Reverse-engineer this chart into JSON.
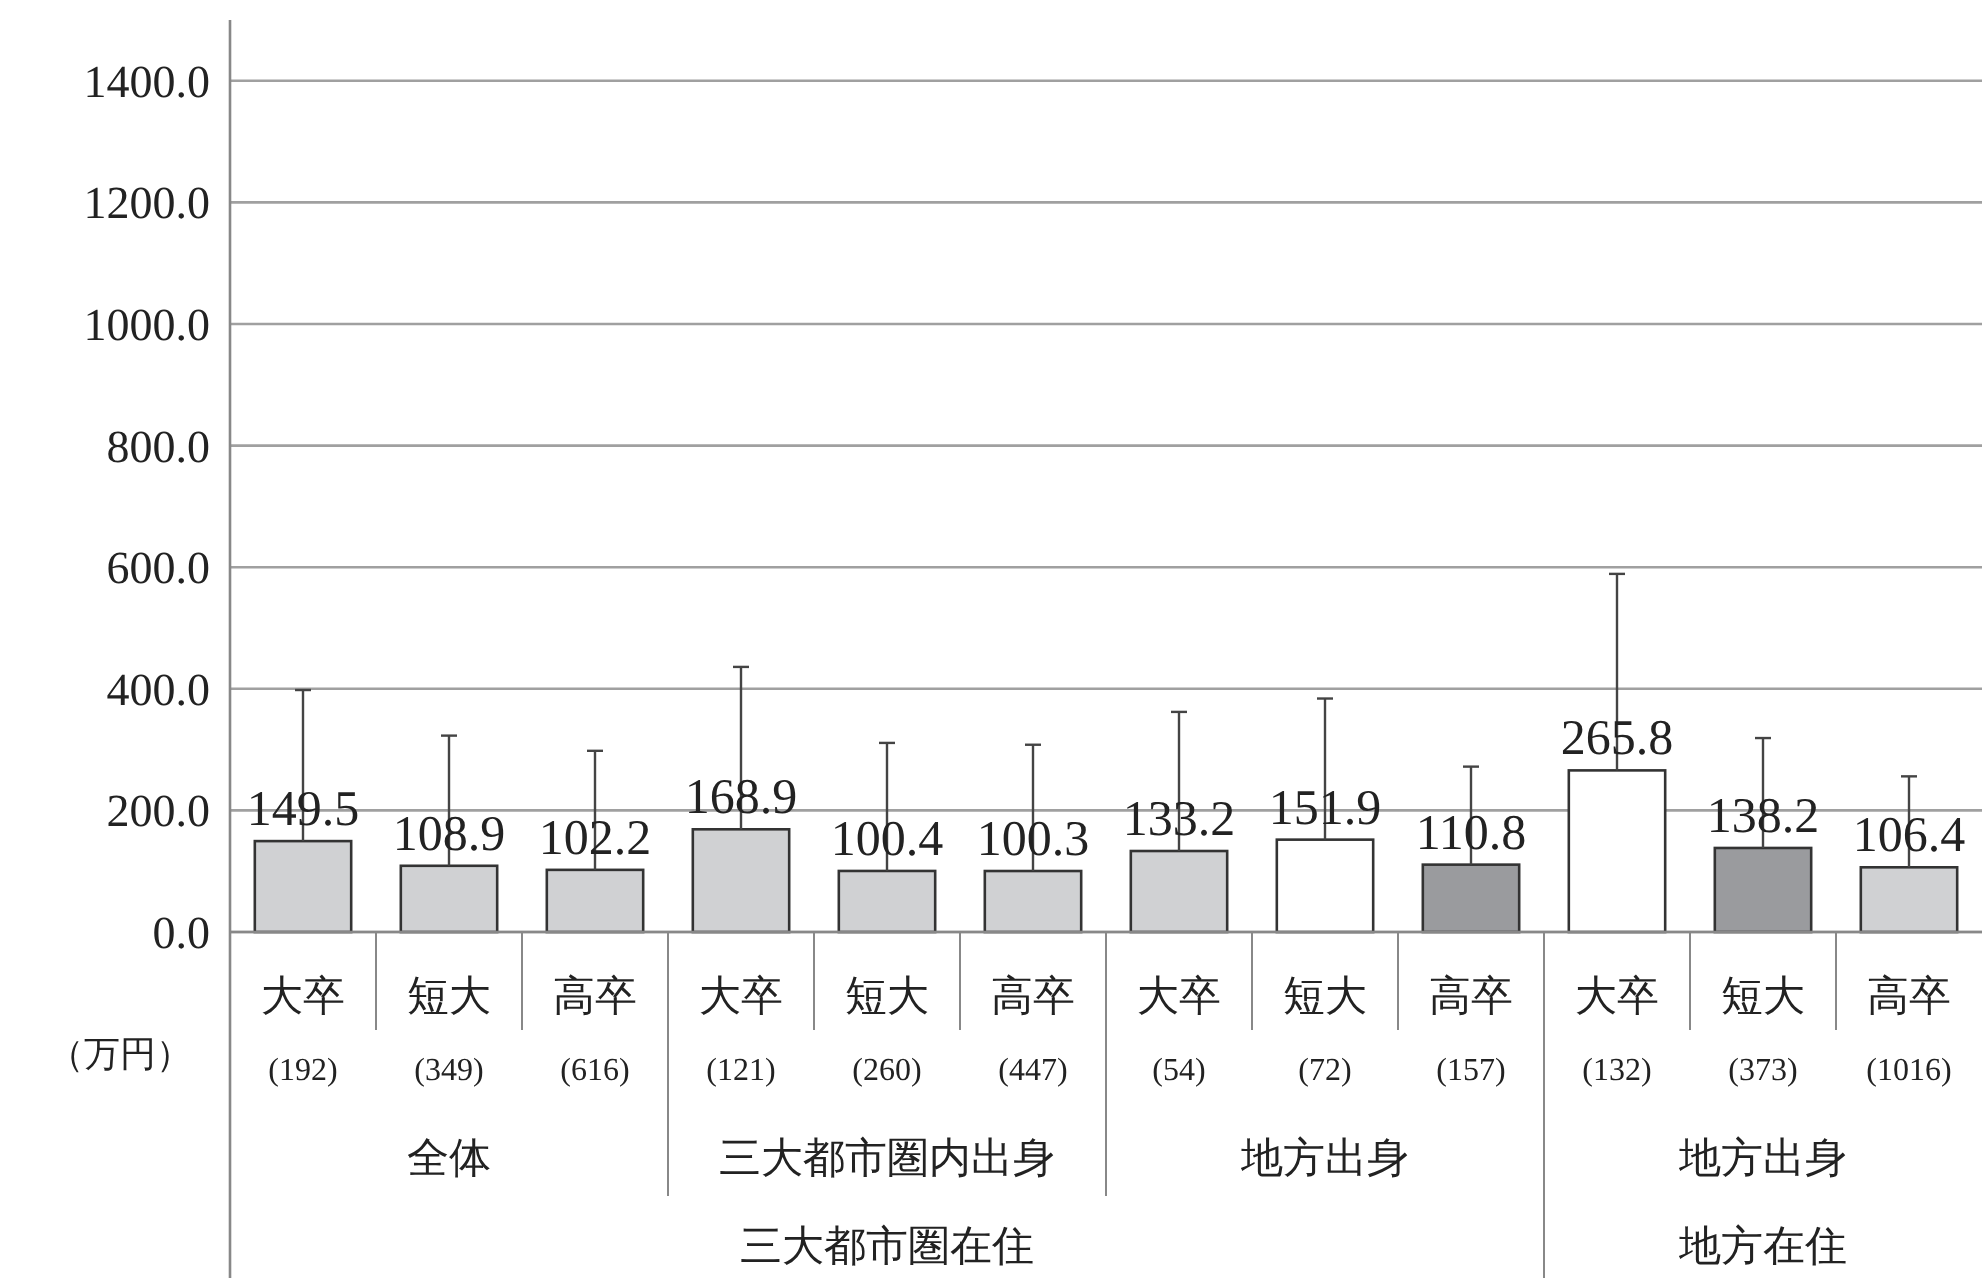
{
  "chart_data": {
    "type": "bar",
    "categories": [
      "大卒\n(192)",
      "短大\n(349)",
      "高卒\n(616)",
      "大卒\n(121)",
      "短大\n(260)",
      "高卒\n(447)",
      "大卒\n(54)",
      "短大\n(72)",
      "高卒\n(157)",
      "大卒\n(132)",
      "短大\n(373)",
      "高卒\n(1016)"
    ],
    "values": [
      149.5,
      108.9,
      102.2,
      168.9,
      100.4,
      100.3,
      133.2,
      151.9,
      110.8,
      265.8,
      138.2,
      106.4
    ],
    "colors": [
      "#d0d1d3",
      "#d0d1d3",
      "#d0d1d3",
      "#d0d1d3",
      "#d0d1d3",
      "#d0d1d3",
      "#d0d1d3",
      "#ffffff",
      "#9a9b9e",
      "#ffffff",
      "#9a9b9e",
      "#d0d1d3"
    ],
    "errors": [
      [
        149.5,
        398
      ],
      [
        108.9,
        323
      ],
      [
        102.2,
        298
      ],
      [
        168.9,
        436
      ],
      [
        100.4,
        311
      ],
      [
        100.3,
        308
      ],
      [
        133.2,
        362
      ],
      [
        151.9,
        384
      ],
      [
        110.8,
        272
      ],
      [
        265.8,
        589
      ],
      [
        138.2,
        319
      ],
      [
        106.4,
        256
      ]
    ],
    "ylim": [
      0,
      1500
    ],
    "yticks": [
      {
        "value": 0,
        "label": "0.0"
      },
      {
        "value": 200,
        "label": "200.0"
      },
      {
        "value": 400,
        "label": "400.0"
      },
      {
        "value": 600,
        "label": "600.0"
      },
      {
        "value": 800,
        "label": "800.0"
      },
      {
        "value": 1000,
        "label": "1000.0"
      },
      {
        "value": 1200,
        "label": "1200.0"
      },
      {
        "value": 1400,
        "label": "1400.0"
      }
    ],
    "grid": "y",
    "data_labels": true,
    "annotations": [
      "（万円）",
      "全体",
      "三大都市圏内出身",
      "地方出身",
      "地方出身",
      "三大都市圏在住",
      "地方在住"
    ]
  }
}
